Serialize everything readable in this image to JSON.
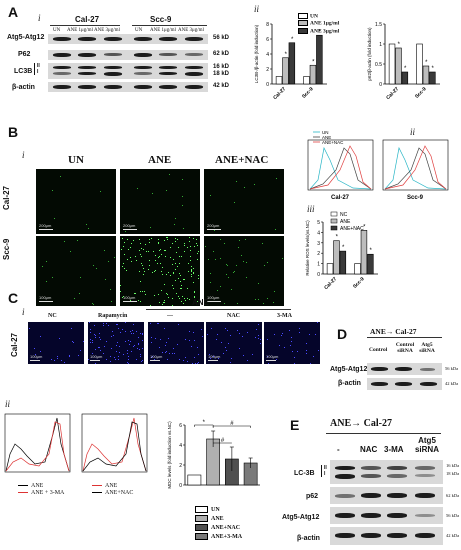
{
  "panels": {
    "a": "A",
    "b": "B",
    "c": "C",
    "d": "D",
    "e": "E"
  },
  "roman": {
    "i": "i",
    "ii": "ii",
    "iii": "iii"
  },
  "A": {
    "groups": [
      "Cal-27",
      "Scc-9"
    ],
    "lanes": [
      "UN",
      "ANE 1μg/ml",
      "ANE 3μg/ml",
      "UN",
      "ANE 1μg/ml",
      "ANE 3μg/ml"
    ],
    "rows": [
      "Atg5-Atg12",
      "P62",
      "LC3B",
      "β-actin"
    ],
    "lc3_forms": [
      "II",
      "I"
    ],
    "kd": [
      "56 kD",
      "62 kD",
      "16 kD",
      "18 kD",
      "42 kD"
    ],
    "legend": [
      "UN",
      "ANE 1μg/ml",
      "ANE 3μg/ml"
    ]
  },
  "B": {
    "columns": [
      "UN",
      "ANE",
      "ANE+NAC"
    ],
    "rows": [
      "Cal-27",
      "Scc-9"
    ],
    "scales": [
      "200μm",
      "100μm"
    ],
    "flow_legend": [
      "UN",
      "ANE",
      "ANE+NAC"
    ],
    "flow_titles": [
      "Cal-27",
      "Scc-9"
    ],
    "bar_legend": [
      "NC",
      "ANE",
      "ANE+NAC"
    ]
  },
  "C": {
    "header": "ANE",
    "columns": [
      "NC",
      "Rapamycin",
      "---",
      "NAC",
      "3-MA"
    ],
    "row": "Cal-27",
    "scale": "100μm",
    "hist_legend_1": [
      "ANE",
      "ANE + 3-MA"
    ],
    "hist_legend_2": [
      "ANE",
      "ANE+NAC"
    ],
    "bar_legend": [
      "UN",
      "ANE",
      "ANE+NAC",
      "ANE+3-MA"
    ]
  },
  "D": {
    "title": "ANE→ Cal-27",
    "lanes": [
      "Control",
      "Control siRNA",
      "Atg5 siRNA"
    ],
    "rows": [
      "Atg5-Atg12",
      "β-actin"
    ],
    "kd": [
      "56 kDa",
      "42 kDa"
    ]
  },
  "E": {
    "title": "ANE→ Cal-27",
    "lanes": [
      "-",
      "NAC",
      "3-MA",
      "Atg5 siRNA"
    ],
    "rows": [
      "LC-3B",
      "p62",
      "Atg5-Atg12",
      "β-actin"
    ],
    "lc3_forms": [
      "II",
      "I"
    ],
    "kd": [
      "16 kDa",
      "18 kDa",
      "62 kDa",
      "56 kDa",
      "42 kDa"
    ]
  },
  "chart_data": [
    {
      "type": "bar",
      "categories": [
        "Cal-27",
        "Scc-9"
      ],
      "ylabel": "LC3B-/β-actin (fold induction)",
      "ylim": [
        0,
        8
      ],
      "series": [
        {
          "name": "UN",
          "values": [
            1,
            1
          ],
          "color": "#ffffff"
        },
        {
          "name": "ANE 1μg/ml",
          "values": [
            3.5,
            2.5
          ],
          "color": "#bdbdbd"
        },
        {
          "name": "ANE 3μg/ml",
          "values": [
            5.5,
            6.5
          ],
          "color": "#3a3a3a"
        }
      ],
      "yticks": [
        0,
        2,
        4,
        6,
        8
      ]
    },
    {
      "type": "bar",
      "categories": [
        "Cal-27",
        "Scc-9"
      ],
      "ylabel": "p62/β-actin (fold induction)",
      "ylim": [
        0,
        1.5
      ],
      "series": [
        {
          "name": "UN",
          "values": [
            1,
            1
          ],
          "color": "#ffffff"
        },
        {
          "name": "ANE 1μg/ml",
          "values": [
            0.9,
            0.45
          ],
          "color": "#bdbdbd"
        },
        {
          "name": "ANE 3μg/ml",
          "values": [
            0.3,
            0.3
          ],
          "color": "#3a3a3a"
        }
      ],
      "yticks": [
        0,
        0.5,
        1,
        1.5
      ]
    },
    {
      "type": "bar",
      "categories": [
        "Cal-27",
        "Scc-9"
      ],
      "ylabel": "Relative ROS levels(vs.NC)",
      "ylim": [
        0,
        5
      ],
      "series": [
        {
          "name": "NC",
          "values": [
            1,
            1
          ],
          "color": "#ffffff"
        },
        {
          "name": "ANE",
          "values": [
            3.2,
            4.2
          ],
          "color": "#bdbdbd"
        },
        {
          "name": "ANE+NAC",
          "values": [
            2.2,
            1.9
          ],
          "color": "#3a3a3a"
        }
      ],
      "yticks": [
        0,
        1,
        2,
        3,
        4,
        5
      ]
    },
    {
      "type": "bar",
      "categories": [
        "UN",
        "ANE",
        "ANE+NAC",
        "ANE+3-MA"
      ],
      "ylabel": "MDC levels (fold induction vs.NC)",
      "ylim": [
        0,
        6
      ],
      "values": [
        1,
        4.6,
        2.6,
        2.2
      ],
      "errors": [
        0,
        0.8,
        1.2,
        0.5
      ],
      "colors": [
        "#ffffff",
        "#b0b0b0",
        "#505050",
        "#7a7a7a"
      ],
      "yticks": [
        0,
        2,
        4,
        6
      ]
    }
  ]
}
